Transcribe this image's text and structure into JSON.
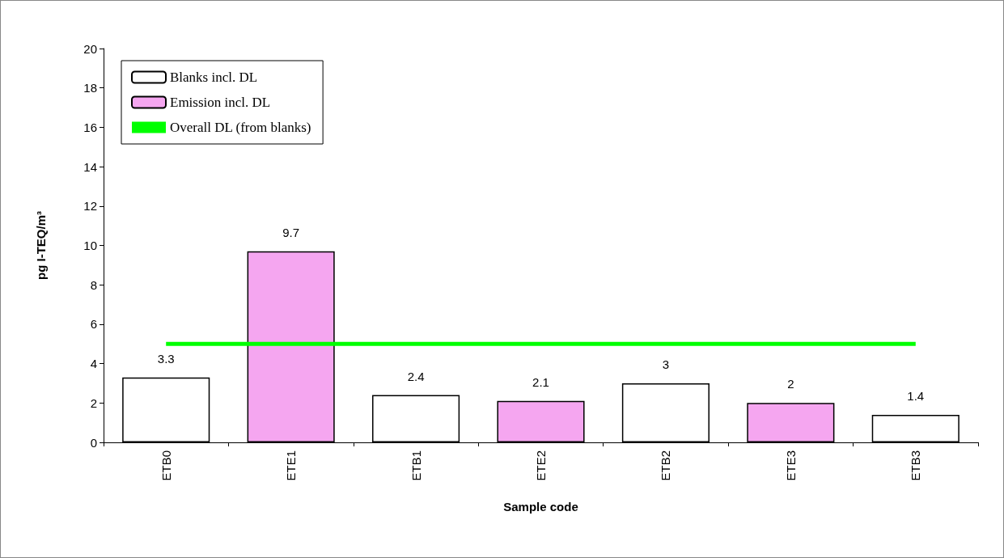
{
  "chart_data": {
    "type": "bar",
    "xlabel": "Sample code",
    "ylabel": "pg I-TEQ/m³",
    "categories": [
      "ETB0",
      "ETE1",
      "ETB1",
      "ETE2",
      "ETB2",
      "ETE3",
      "ETB3"
    ],
    "series": [
      {
        "name": "Blanks incl. DL",
        "color": "#ffffff",
        "values": [
          3.3,
          null,
          2.4,
          null,
          3,
          null,
          1.4
        ],
        "value_labels": [
          "3.3",
          null,
          "2.4",
          null,
          "3",
          null,
          "1.4"
        ]
      },
      {
        "name": "Emission incl. DL",
        "color": "#f5a6f0",
        "values": [
          null,
          9.7,
          null,
          2.1,
          null,
          2,
          null
        ],
        "value_labels": [
          null,
          "9.7",
          null,
          "2.1",
          null,
          "2",
          null
        ]
      },
      {
        "name": "Overall DL (from blanks)",
        "type": "line",
        "color": "#00ff00",
        "values": [
          5,
          5,
          5,
          5,
          5,
          5,
          5
        ]
      }
    ],
    "ylim": [
      0,
      20
    ],
    "yticks": [
      0,
      2,
      4,
      6,
      8,
      10,
      12,
      14,
      16,
      18,
      20
    ],
    "grid": false,
    "legend": "top left",
    "marker": "none"
  }
}
